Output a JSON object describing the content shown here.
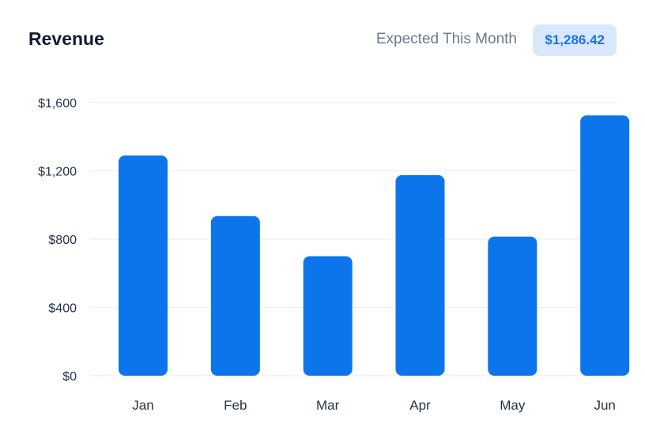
{
  "header": {
    "title": "Revenue",
    "expected_label": "Expected This Month",
    "expected_value": "$1,286.42"
  },
  "colors": {
    "bar": "#0d75ec",
    "grid": "#eef1f5",
    "badge_bg": "#d8e7fb",
    "badge_text": "#1c74e4"
  },
  "chart_data": {
    "type": "bar",
    "title": "Revenue",
    "categories": [
      "Jan",
      "Feb",
      "Mar",
      "Apr",
      "May",
      "Jun"
    ],
    "values": [
      1290,
      935,
      700,
      1175,
      815,
      1525
    ],
    "ylim": [
      0,
      1600
    ],
    "yticks": [
      0,
      400,
      800,
      1200,
      1600
    ],
    "ytick_labels": [
      "$0",
      "$400",
      "$800",
      "$1,200",
      "$1,600"
    ],
    "grid": true,
    "xlabel": "",
    "ylabel": ""
  }
}
